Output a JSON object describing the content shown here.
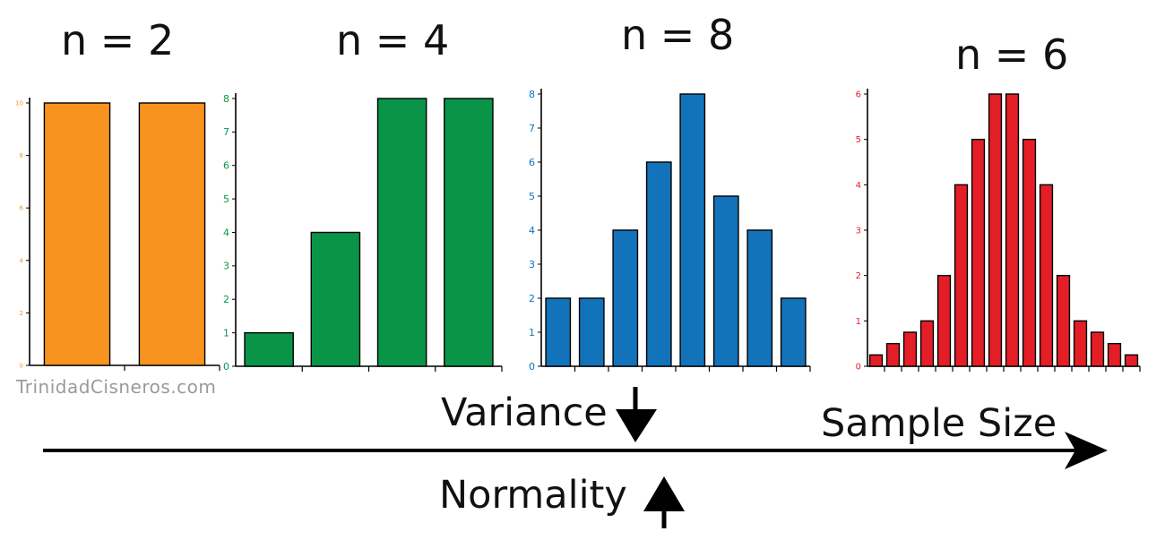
{
  "colors": {
    "orange": "#F7931E",
    "green": "#0A9447",
    "blue": "#1273BA",
    "red": "#E41E26",
    "black": "#111111"
  },
  "watermark": "TrinidadCisneros.com",
  "labels": {
    "variance": "Variance",
    "normality": "Normality",
    "sample_size": "Sample Size"
  },
  "chart_data": [
    {
      "type": "bar",
      "title": "n = 2",
      "color": "orange",
      "values": [
        10,
        10
      ],
      "ylim": [
        0,
        10
      ],
      "yticks": [
        0,
        2,
        4,
        6,
        8,
        10
      ]
    },
    {
      "type": "bar",
      "title": "n = 4",
      "color": "green",
      "values": [
        1,
        4,
        8,
        8
      ],
      "ylim": [
        0,
        8
      ],
      "yticks": [
        0,
        1,
        2,
        3,
        4,
        5,
        6,
        7,
        8
      ]
    },
    {
      "type": "bar",
      "title": "n = 8",
      "color": "blue",
      "values": [
        2,
        2,
        4,
        6,
        8,
        5,
        4,
        2
      ],
      "ylim": [
        0,
        8
      ],
      "yticks": [
        0,
        1,
        2,
        3,
        4,
        5,
        6,
        7,
        8
      ]
    },
    {
      "type": "bar",
      "title": "n = 6",
      "color": "red",
      "values": [
        0.25,
        0.5,
        0.75,
        1,
        2,
        4,
        5,
        6,
        6,
        5,
        4,
        2,
        1,
        0.75,
        0.5,
        0.25
      ],
      "ylim": [
        0,
        6
      ],
      "yticks": [
        0,
        1,
        2,
        3,
        4,
        5,
        6
      ]
    }
  ]
}
